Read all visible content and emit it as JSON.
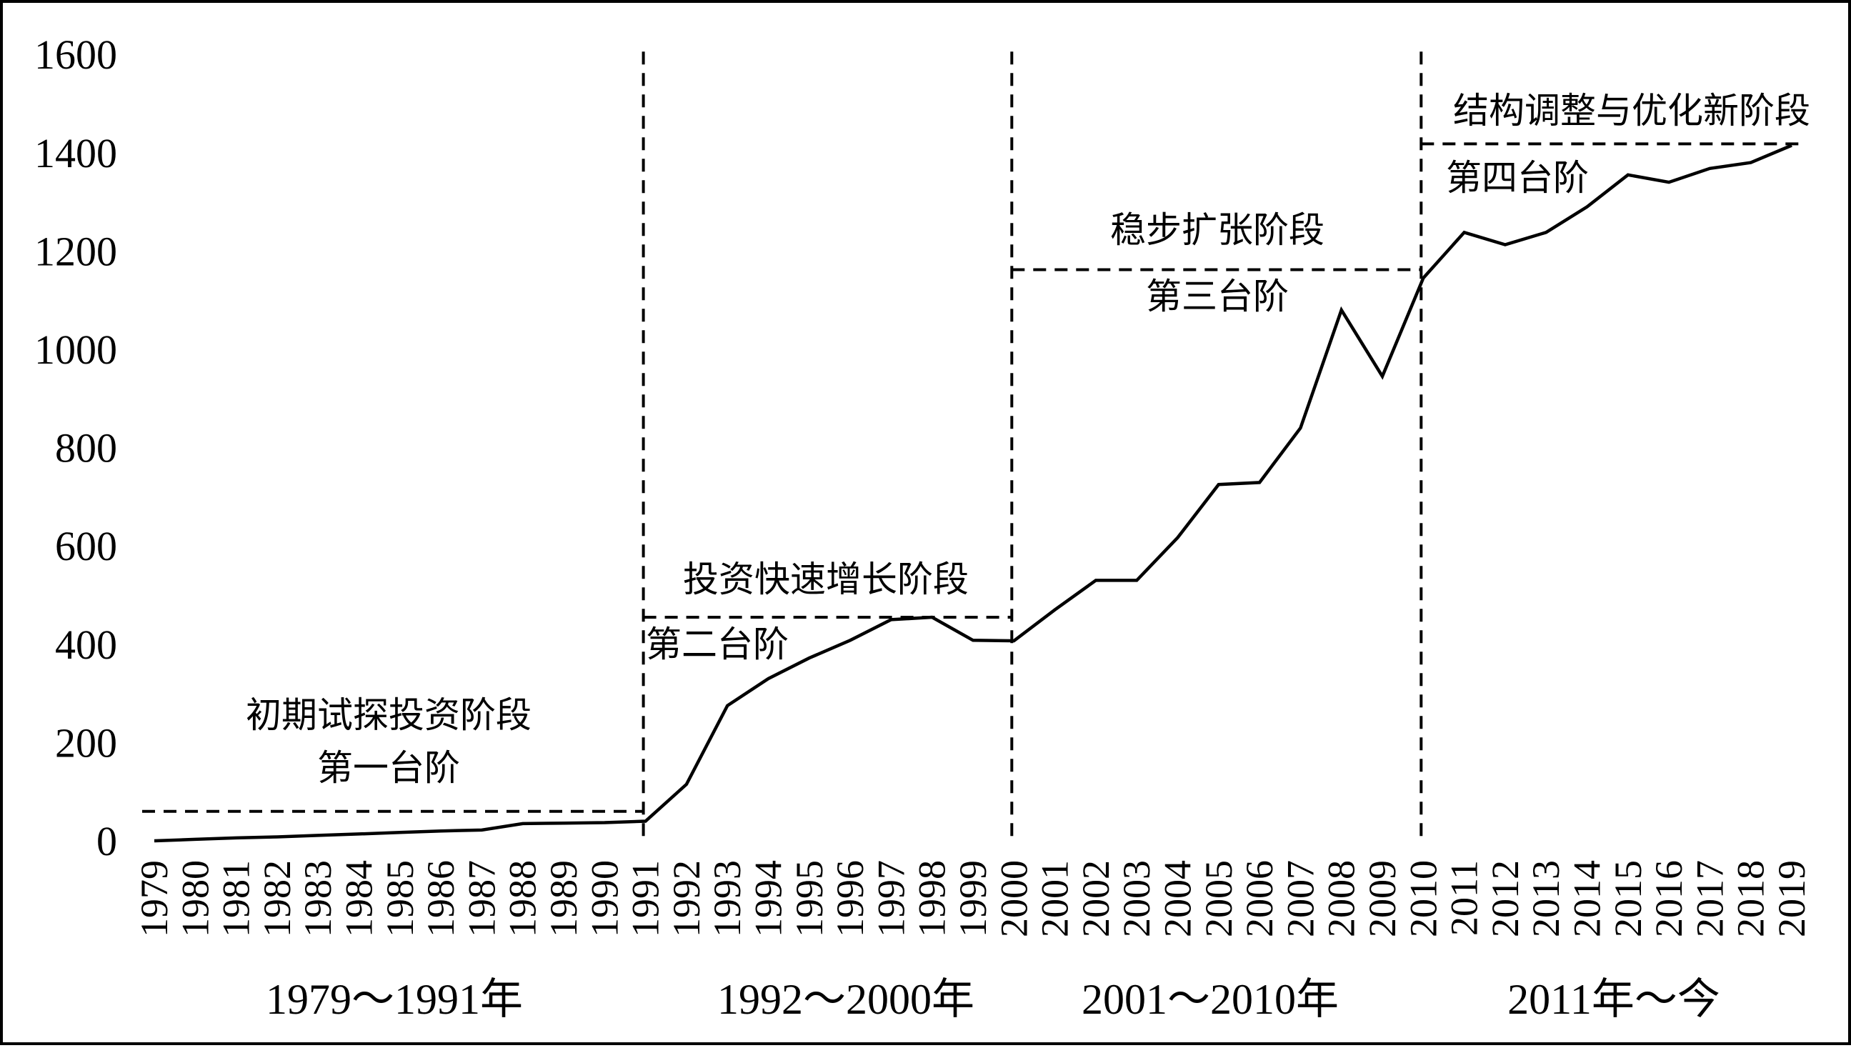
{
  "chart_data": {
    "type": "line",
    "title": "",
    "xlabel": "",
    "ylabel": "",
    "ylim": [
      0,
      1600
    ],
    "yticks": [
      0,
      200,
      400,
      600,
      800,
      1000,
      1200,
      1400,
      1600
    ],
    "grid": false,
    "x": [
      "1979",
      "1980",
      "1981",
      "1982",
      "1983",
      "1984",
      "1985",
      "1986",
      "1987",
      "1988",
      "1989",
      "1990",
      "1991",
      "1992",
      "1993",
      "1994",
      "1995",
      "1996",
      "1997",
      "1998",
      "1999",
      "2000",
      "2001",
      "2002",
      "2003",
      "2004",
      "2005",
      "2006",
      "2007",
      "2008",
      "2009",
      "2010",
      "2011",
      "2012",
      "2013",
      "2014",
      "2015",
      "2016",
      "2017",
      "2018",
      "2019"
    ],
    "series": [
      {
        "values": [
          0,
          3,
          6,
          8,
          11,
          14,
          17,
          20,
          22,
          35,
          36,
          37,
          40,
          115,
          275,
          330,
          372,
          408,
          450,
          455,
          408,
          407,
          470,
          530,
          530,
          617,
          725,
          729,
          840,
          1080,
          945,
          1145,
          1238,
          1213,
          1238,
          1290,
          1355,
          1340,
          1368,
          1380,
          1415
        ],
        "color": "#000000"
      }
    ],
    "step_levels": [
      {
        "from_year": "1979",
        "to_year": "1991",
        "value": 60
      },
      {
        "from_year": "1991",
        "to_year": "2000",
        "value": 455
      },
      {
        "from_year": "2000",
        "to_year": "2010",
        "value": 1162
      },
      {
        "from_year": "2010",
        "to_year": "2019",
        "value": 1418
      }
    ],
    "dividers": [
      "1991",
      "2000",
      "2010"
    ],
    "annotations": {
      "stage1": "初期试探投资阶段",
      "step1": "第一台阶",
      "stage2": "投资快速增长阶段",
      "step2": "第二台阶",
      "stage3": "稳步扩张阶段",
      "step3": "第三台阶",
      "stage4": "结构调整与优化新阶段",
      "step4": "第四台阶"
    },
    "period_labels": [
      "1979～1991年",
      "1992～2000年",
      "2001～2010年",
      "2011年～今"
    ]
  }
}
